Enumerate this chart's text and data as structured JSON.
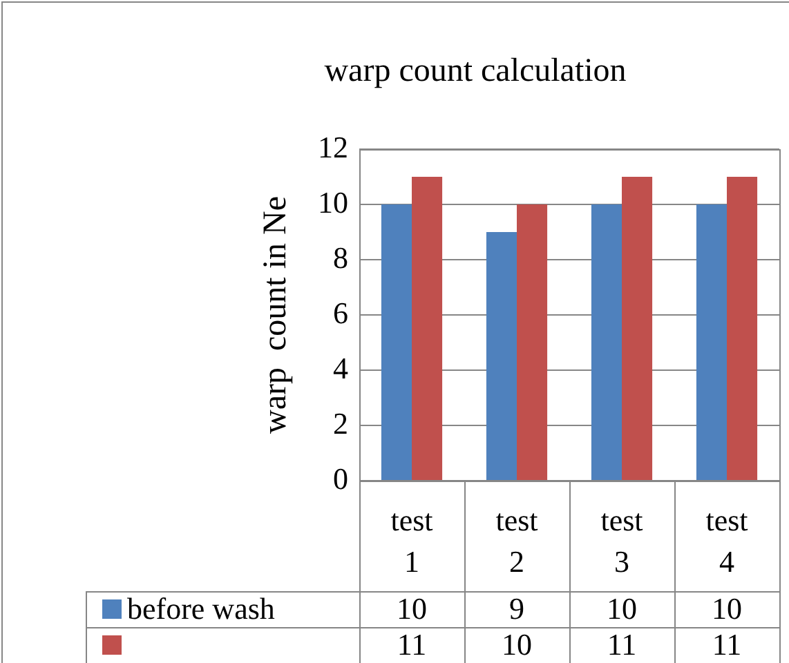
{
  "chart_data": {
    "type": "bar",
    "title": "warp count calculation",
    "ylabel": "warp  count in Ne",
    "categories": [
      "test 1",
      "test 2",
      "test 3",
      "test 4"
    ],
    "series": [
      {
        "name": "before wash",
        "color": "#4f81bd",
        "values": [
          10,
          9,
          10,
          10
        ]
      },
      {
        "color": "#c0504d",
        "values": [
          11,
          10,
          11,
          11
        ]
      }
    ],
    "ylim": [
      0,
      12
    ],
    "yticks": [
      0,
      2,
      4,
      6,
      8,
      10,
      12
    ],
    "grid": "y",
    "legend": "bottom",
    "data_labels": true
  }
}
